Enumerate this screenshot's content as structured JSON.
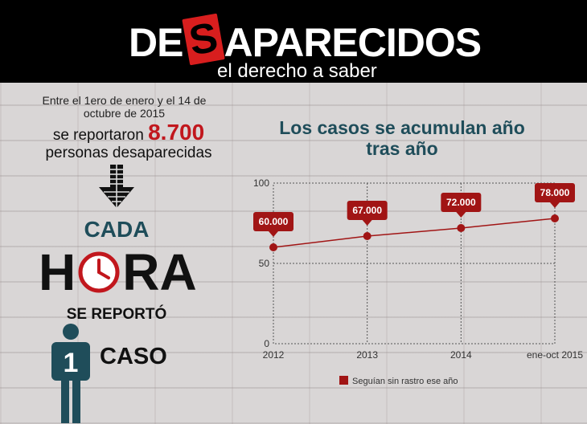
{
  "header": {
    "logo_left": "DE",
    "logo_highlight": "S",
    "logo_right": "APARECIDOS",
    "tagline": "el derecho a saber"
  },
  "intro": {
    "line1": "Entre el 1ero de enero y el 14 de octubre de 2015",
    "line2_prefix": "se reportaron",
    "number": "8.700",
    "line2_suffix": "personas desaparecidas"
  },
  "hour": {
    "cada": "CADA",
    "hora_left": "H",
    "hora_right": "RA",
    "se_reporto": "SE REPORTÓ",
    "person_number": "1",
    "caso": "CASO"
  },
  "colors": {
    "accent_red": "#c1171d",
    "series_red": "#a11515",
    "title_teal": "#1f4d5a"
  },
  "chart_data": {
    "type": "line",
    "title": "Los casos se acumulan año tras año",
    "categories": [
      "2012",
      "2013",
      "2014",
      "ene-oct 2015"
    ],
    "series": [
      {
        "name": "Seguían sin rastro ese año",
        "values": [
          60000,
          67000,
          72000,
          78000
        ],
        "labels": [
          "60.000",
          "67.000",
          "72.000",
          "78.000"
        ]
      }
    ],
    "y_ticks": [
      {
        "value": 0,
        "label": "0"
      },
      {
        "value": 50000,
        "label": "50"
      },
      {
        "value": 100000,
        "label": "100"
      }
    ],
    "ylim": [
      0,
      100000
    ],
    "grid": true,
    "legend_position": "bottom"
  }
}
